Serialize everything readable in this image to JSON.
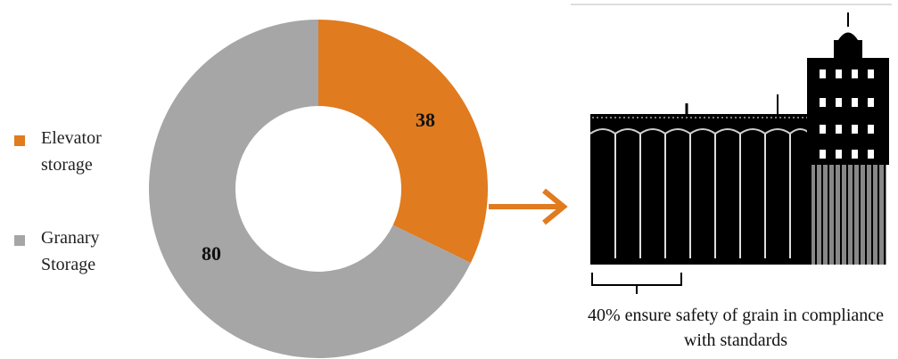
{
  "chart_data": {
    "type": "pie",
    "categories": [
      "Elevator storage",
      "Granary Storage"
    ],
    "values": [
      38,
      80
    ],
    "colors": [
      "#e07b1f",
      "#a6a6a6"
    ],
    "annotation": "40% ensure safety of grain in compliance with standards"
  }
}
